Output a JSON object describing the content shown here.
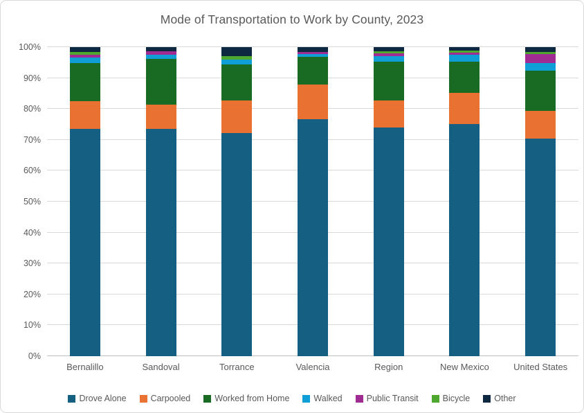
{
  "chart_data": {
    "type": "bar",
    "stacked": true,
    "percent_stacked": true,
    "title": "Mode of Transportation to Work by County, 2023",
    "categories": [
      "Bernalillo",
      "Sandoval",
      "Torrance",
      "Valencia",
      "Region",
      "New Mexico",
      "United States"
    ],
    "series": [
      {
        "name": "Drove Alone",
        "color": "#156082",
        "values": [
          73.5,
          73.5,
          72.3,
          76.6,
          73.9,
          75.2,
          70.5
        ]
      },
      {
        "name": "Carpooled",
        "color": "#E97132",
        "values": [
          9.1,
          7.9,
          10.5,
          11.3,
          8.9,
          9.9,
          8.8
        ]
      },
      {
        "name": "Worked from Home",
        "color": "#196B24",
        "values": [
          12.3,
          14.9,
          11.7,
          9.0,
          12.6,
          10.3,
          13.1
        ]
      },
      {
        "name": "Walked",
        "color": "#0F9ED5",
        "values": [
          1.7,
          1.3,
          1.5,
          0.8,
          1.7,
          2.1,
          2.4
        ]
      },
      {
        "name": "Public Transit",
        "color": "#A02B93",
        "values": [
          0.9,
          1.0,
          0.0,
          0.7,
          0.9,
          0.8,
          3.0
        ]
      },
      {
        "name": "Bicycle",
        "color": "#4EA72E",
        "values": [
          1.0,
          0.0,
          1.1,
          0.0,
          0.7,
          0.7,
          0.6
        ]
      },
      {
        "name": "Other",
        "color": "#0E2841",
        "values": [
          1.5,
          1.4,
          2.9,
          1.6,
          1.3,
          1.0,
          1.6
        ]
      }
    ],
    "y_ticks": [
      "0%",
      "10%",
      "20%",
      "30%",
      "40%",
      "50%",
      "60%",
      "70%",
      "80%",
      "90%",
      "100%"
    ],
    "ylim": [
      0,
      100
    ],
    "grid": true,
    "legend_position": "bottom"
  }
}
